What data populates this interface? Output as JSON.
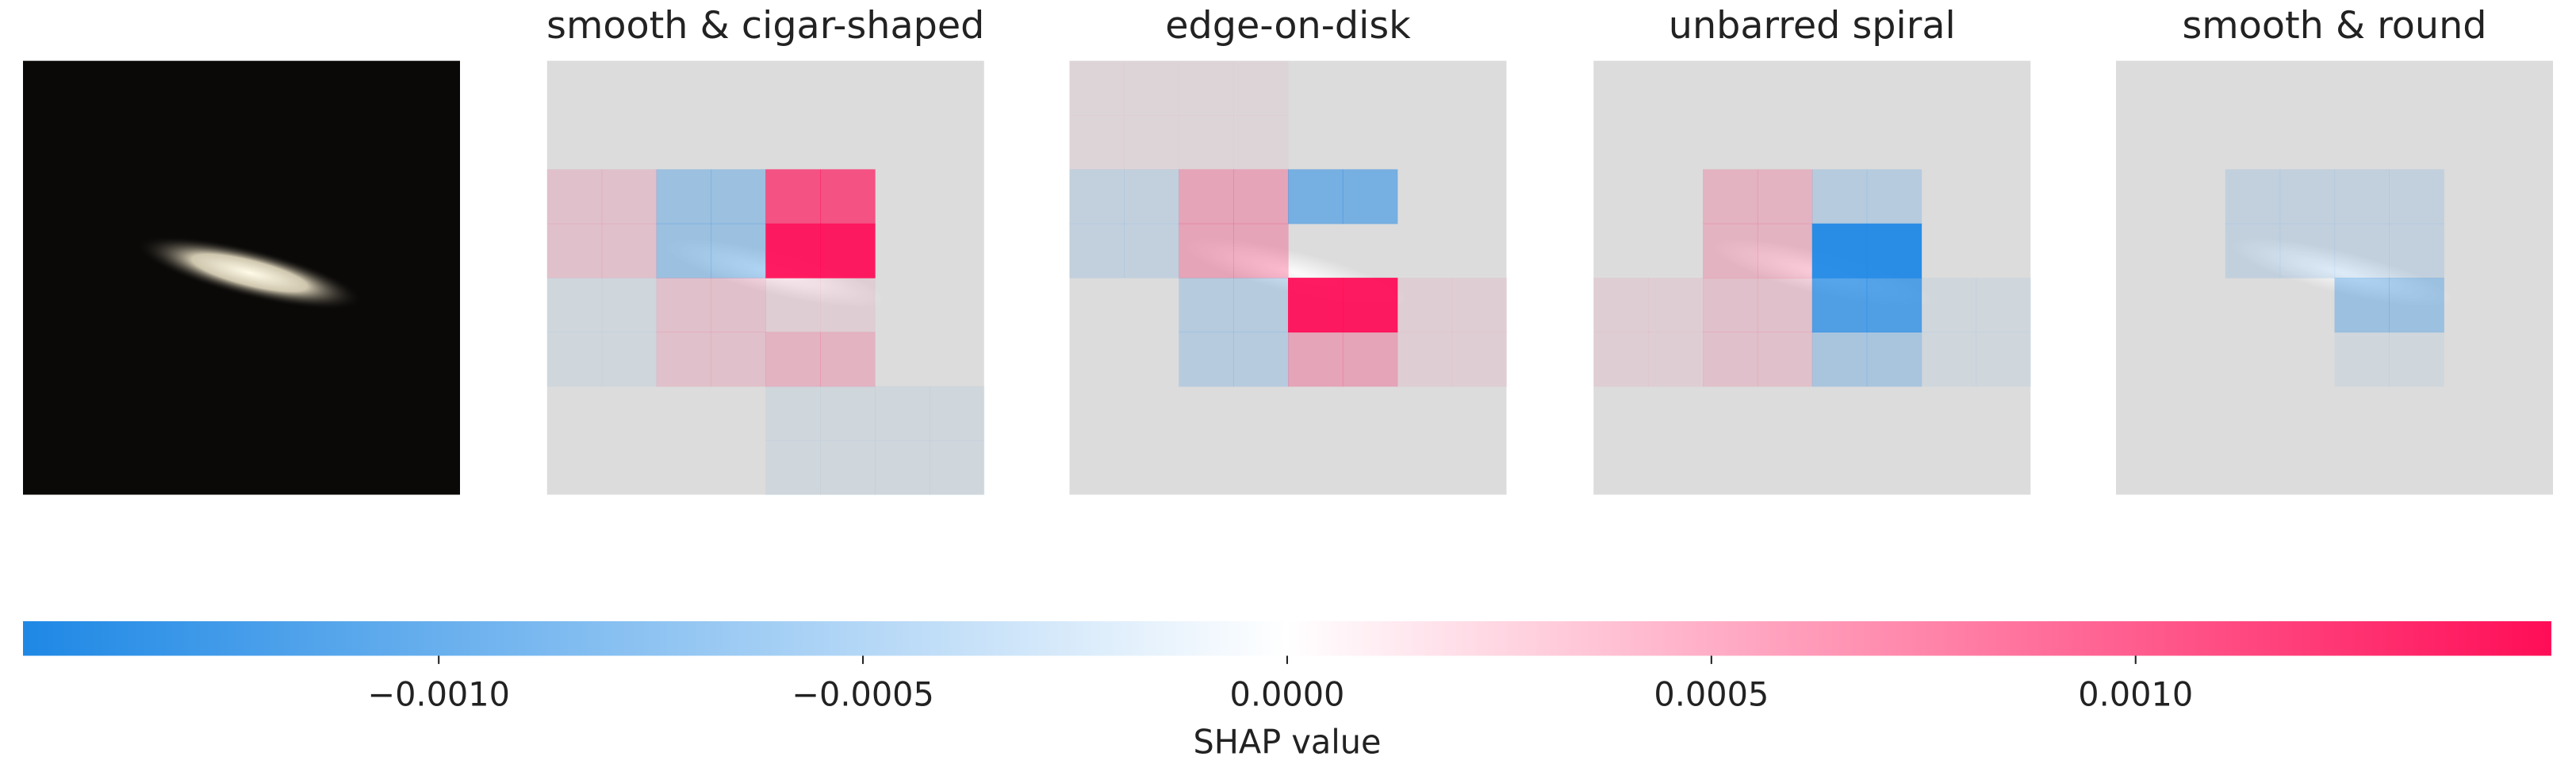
{
  "chart_data": {
    "type": "heatmap",
    "panels": [
      {
        "title": "smooth & cigar-shaped",
        "values": [
          [
            0,
            0,
            0,
            0,
            0,
            0,
            0,
            0
          ],
          [
            0,
            0,
            0,
            0,
            0,
            0,
            0,
            0
          ],
          [
            0.0002,
            0.0002,
            -0.0005,
            -0.0005,
            0.001,
            0.001,
            0,
            0
          ],
          [
            0.0002,
            0.0002,
            -0.0005,
            -0.0005,
            0.0014,
            0.0014,
            0,
            0
          ],
          [
            -0.0001,
            -0.0001,
            0.0002,
            0.0002,
            0.0001,
            0.0001,
            0,
            0
          ],
          [
            -0.0001,
            -0.0001,
            0.0002,
            0.0002,
            0.0003,
            0.0003,
            0,
            0
          ],
          [
            0,
            0,
            0,
            0,
            -0.0001,
            -0.0001,
            -0.0001,
            -0.0001
          ],
          [
            0,
            0,
            0,
            0,
            -0.0001,
            -0.0001,
            -0.0001,
            -0.0001
          ]
        ]
      },
      {
        "title": "edge-on-disk",
        "values": [
          [
            5e-05,
            5e-05,
            5e-05,
            5e-05,
            0,
            0,
            0,
            0
          ],
          [
            5e-05,
            5e-05,
            5e-05,
            5e-05,
            0,
            0,
            0,
            0
          ],
          [
            -0.0002,
            -0.0002,
            0.0004,
            0.0004,
            -0.0008,
            -0.0008,
            0,
            0
          ],
          [
            -0.0002,
            -0.0002,
            0.0004,
            0.0004,
            0,
            0,
            0,
            0
          ],
          [
            0,
            0,
            -0.0003,
            -0.0003,
            0.0014,
            0.0014,
            0.0001,
            0.0001
          ],
          [
            0,
            0,
            -0.0003,
            -0.0003,
            0.0004,
            0.0004,
            0.0001,
            0.0001
          ],
          [
            0,
            0,
            0,
            0,
            0,
            0,
            0,
            0
          ],
          [
            0,
            0,
            0,
            0,
            0,
            0,
            0,
            0
          ]
        ]
      },
      {
        "title": "unbarred spiral",
        "values": [
          [
            0,
            0,
            0,
            0,
            0,
            0,
            0,
            0
          ],
          [
            0,
            0,
            0,
            0,
            0,
            0,
            0,
            0
          ],
          [
            0,
            0,
            0.0003,
            0.0003,
            -0.0003,
            -0.0003,
            0,
            0
          ],
          [
            0,
            0,
            0.0003,
            0.0003,
            -0.0014,
            -0.0014,
            0,
            0
          ],
          [
            0.0001,
            0.0001,
            0.0002,
            0.0002,
            -0.0011,
            -0.0011,
            -0.0001,
            -0.0001
          ],
          [
            0.0001,
            0.0001,
            0.0002,
            0.0002,
            -0.0004,
            -0.0004,
            -0.0001,
            -0.0001
          ],
          [
            0,
            0,
            0,
            0,
            0,
            0,
            0,
            0
          ],
          [
            0,
            0,
            0,
            0,
            0,
            0,
            0,
            0
          ]
        ]
      },
      {
        "title": "smooth & round",
        "values": [
          [
            0,
            0,
            0,
            0,
            0,
            0,
            0,
            0
          ],
          [
            0,
            0,
            0,
            0,
            0,
            0,
            0,
            0
          ],
          [
            0,
            0,
            -0.0002,
            -0.0002,
            -0.0002,
            -0.0002,
            0,
            0
          ],
          [
            0,
            0,
            -0.0002,
            -0.0002,
            -0.0002,
            -0.0002,
            0,
            0
          ],
          [
            0,
            0,
            0,
            0,
            -0.0005,
            -0.0005,
            0,
            0
          ],
          [
            0,
            0,
            0,
            0,
            -0.0001,
            -0.0001,
            0,
            0
          ],
          [
            0,
            0,
            0,
            0,
            0,
            0,
            0,
            0
          ],
          [
            0,
            0,
            0,
            0,
            0,
            0,
            0,
            0
          ]
        ]
      }
    ],
    "colorbar": {
      "label": "SHAP value",
      "vlim": [
        -0.00149,
        0.00149
      ],
      "colors": [
        "#1e88e5",
        "#ffffff",
        "#ff0d57"
      ],
      "ticks": [
        {
          "value": -0.001,
          "label": "−0.0010"
        },
        {
          "value": -0.0005,
          "label": "−0.0005"
        },
        {
          "value": 0,
          "label": "0.0000"
        },
        {
          "value": 0.0005,
          "label": "0.0005"
        },
        {
          "value": 0.001,
          "label": "0.0010"
        }
      ]
    }
  }
}
